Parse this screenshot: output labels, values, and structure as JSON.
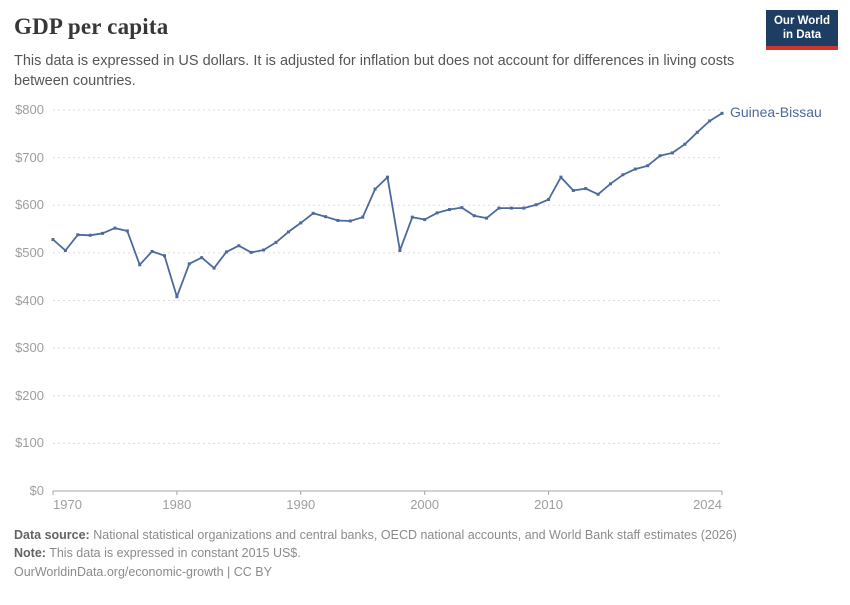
{
  "header": {
    "title": "GDP per capita",
    "subtitle": "This data is expressed in US dollars. It is adjusted for inflation but does not account for differences in living costs between countries."
  },
  "logo": {
    "line1": "Our World",
    "line2": "in Data",
    "bg_color": "#1d3d63",
    "accent_color": "#d0342c"
  },
  "chart_data": {
    "type": "line",
    "title": "GDP per capita",
    "end_label": "Guinea-Bissau",
    "xlim": [
      1970,
      2024
    ],
    "ylim": [
      0,
      800
    ],
    "x_ticks": [
      1970,
      1980,
      1990,
      2000,
      2010,
      2024
    ],
    "y_ticks": [
      0,
      100,
      200,
      300,
      400,
      500,
      600,
      700,
      800
    ],
    "y_tick_prefix": "$",
    "grid": "horizontal-dashed",
    "line_color": "#4C6A9C",
    "grid_color": "#dcdcdc",
    "axis_color": "#a5a5a5",
    "series": [
      {
        "name": "Guinea-Bissau",
        "color": "#4C6A9C",
        "x": [
          1970,
          1971,
          1972,
          1973,
          1974,
          1975,
          1976,
          1977,
          1978,
          1979,
          1980,
          1981,
          1982,
          1983,
          1984,
          1985,
          1986,
          1987,
          1988,
          1989,
          1990,
          1991,
          1992,
          1993,
          1994,
          1995,
          1996,
          1997,
          1998,
          1999,
          2000,
          2001,
          2002,
          2003,
          2004,
          2005,
          2006,
          2007,
          2008,
          2009,
          2010,
          2011,
          2012,
          2013,
          2014,
          2015,
          2016,
          2017,
          2018,
          2019,
          2020,
          2021,
          2022,
          2023,
          2024
        ],
        "values": [
          528,
          505,
          538,
          537,
          541,
          552,
          546,
          475,
          503,
          494,
          408,
          477,
          490,
          468,
          502,
          515,
          501,
          506,
          522,
          544,
          563,
          583,
          576,
          568,
          567,
          575,
          634,
          659,
          505,
          575,
          570,
          584,
          591,
          595,
          578,
          573,
          594,
          594,
          594,
          601,
          612,
          659,
          631,
          635,
          623,
          645,
          664,
          676,
          683,
          704,
          710,
          728,
          753,
          777,
          793
        ]
      }
    ]
  },
  "footer": {
    "data_source_label": "Data source:",
    "data_source": "National statistical organizations and central banks, OECD national accounts, and World Bank staff estimates (2026)",
    "note_label": "Note:",
    "note": "This data is expressed in constant 2015 US$.",
    "attribution": "OurWorldinData.org/economic-growth | CC BY"
  }
}
